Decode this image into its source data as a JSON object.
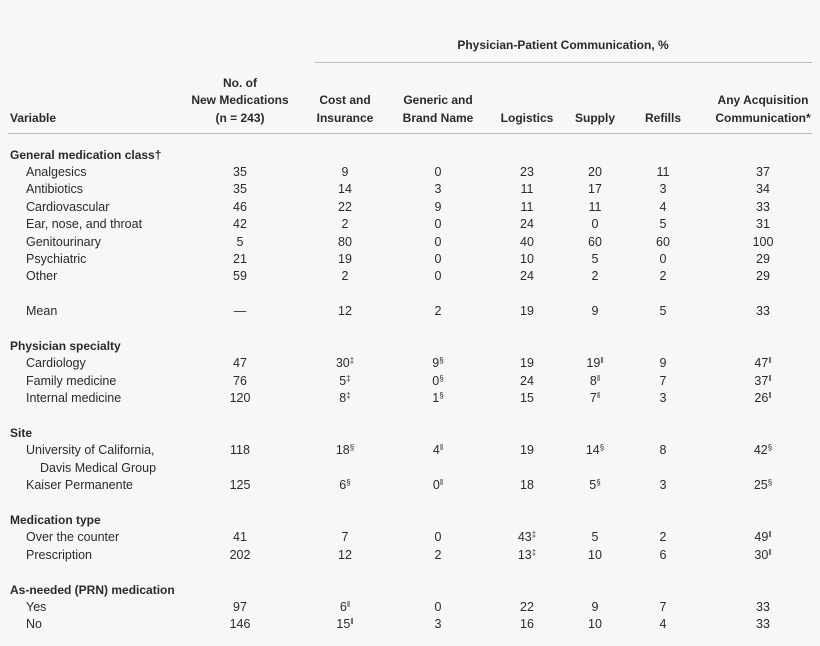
{
  "header": {
    "group_title": "Physician-Patient Communication, %",
    "columns": [
      [
        "Variable"
      ],
      [
        "No. of",
        "New Medications",
        "(n = 243)"
      ],
      [
        "Cost and",
        "Insurance"
      ],
      [
        "Generic and",
        "Brand Name"
      ],
      [
        "Logistics"
      ],
      [
        "Supply"
      ],
      [
        "Refills"
      ],
      [
        "Any Acquisition",
        "Communication*"
      ]
    ]
  },
  "sections": [
    {
      "title": "General medication class†",
      "rows": [
        {
          "label": [
            "Analgesics"
          ],
          "cells": [
            35,
            9,
            0,
            23,
            20,
            11,
            37
          ]
        },
        {
          "label": [
            "Antibiotics"
          ],
          "cells": [
            35,
            14,
            3,
            11,
            17,
            3,
            34
          ]
        },
        {
          "label": [
            "Cardiovascular"
          ],
          "cells": [
            46,
            22,
            9,
            11,
            11,
            4,
            33
          ]
        },
        {
          "label": [
            "Ear, nose, and throat"
          ],
          "cells": [
            42,
            2,
            0,
            24,
            0,
            5,
            31
          ]
        },
        {
          "label": [
            "Genitourinary"
          ],
          "cells": [
            5,
            80,
            0,
            40,
            60,
            60,
            100
          ]
        },
        {
          "label": [
            "Psychiatric"
          ],
          "cells": [
            21,
            19,
            0,
            10,
            5,
            0,
            29
          ]
        },
        {
          "label": [
            "Other"
          ],
          "cells": [
            59,
            2,
            0,
            24,
            2,
            2,
            29
          ]
        }
      ],
      "summary": {
        "label": [
          "Mean"
        ],
        "cells": [
          "—",
          12,
          2,
          19,
          9,
          5,
          33
        ]
      }
    },
    {
      "title": "Physician specialty",
      "rows": [
        {
          "label": [
            "Cardiology"
          ],
          "cells": [
            47,
            {
              "value": 30,
              "mark": "‡"
            },
            {
              "value": 9,
              "mark": "§"
            },
            19,
            {
              "value": 19,
              "mark": "‖"
            },
            9,
            {
              "value": 47,
              "mark": "‖"
            }
          ]
        },
        {
          "label": [
            "Family medicine"
          ],
          "cells": [
            76,
            {
              "value": 5,
              "mark": "‡"
            },
            {
              "value": 0,
              "mark": "§"
            },
            24,
            {
              "value": 8,
              "mark": "‖"
            },
            7,
            {
              "value": 37,
              "mark": "‖"
            }
          ]
        },
        {
          "label": [
            "Internal medicine"
          ],
          "cells": [
            120,
            {
              "value": 8,
              "mark": "‡"
            },
            {
              "value": 1,
              "mark": "§"
            },
            15,
            {
              "value": 7,
              "mark": "‖"
            },
            3,
            {
              "value": 26,
              "mark": "‖"
            }
          ]
        }
      ]
    },
    {
      "title": "Site",
      "rows": [
        {
          "label": [
            "University of California,",
            "Davis Medical Group"
          ],
          "cells": [
            118,
            {
              "value": 18,
              "mark": "§"
            },
            {
              "value": 4,
              "mark": "‖"
            },
            19,
            {
              "value": 14,
              "mark": "§"
            },
            8,
            {
              "value": 42,
              "mark": "§"
            }
          ]
        },
        {
          "label": [
            "Kaiser Permanente"
          ],
          "cells": [
            125,
            {
              "value": 6,
              "mark": "§"
            },
            {
              "value": 0,
              "mark": "‖"
            },
            18,
            {
              "value": 5,
              "mark": "§"
            },
            3,
            {
              "value": 25,
              "mark": "§"
            }
          ]
        }
      ]
    },
    {
      "title": "Medication type",
      "rows": [
        {
          "label": [
            "Over the counter"
          ],
          "cells": [
            41,
            7,
            0,
            {
              "value": 43,
              "mark": "‡"
            },
            5,
            2,
            {
              "value": 49,
              "mark": "‖"
            }
          ]
        },
        {
          "label": [
            "Prescription"
          ],
          "cells": [
            202,
            12,
            2,
            {
              "value": 13,
              "mark": "‡"
            },
            10,
            6,
            {
              "value": 30,
              "mark": "‖"
            }
          ]
        }
      ]
    },
    {
      "title": "As-needed (PRN) medication",
      "rows": [
        {
          "label": [
            "Yes"
          ],
          "cells": [
            97,
            {
              "value": 6,
              "mark": "‖"
            },
            0,
            22,
            9,
            7,
            33
          ]
        },
        {
          "label": [
            "No"
          ],
          "cells": [
            146,
            {
              "value": 15,
              "mark": "‖"
            },
            3,
            16,
            10,
            4,
            33
          ]
        }
      ]
    }
  ]
}
